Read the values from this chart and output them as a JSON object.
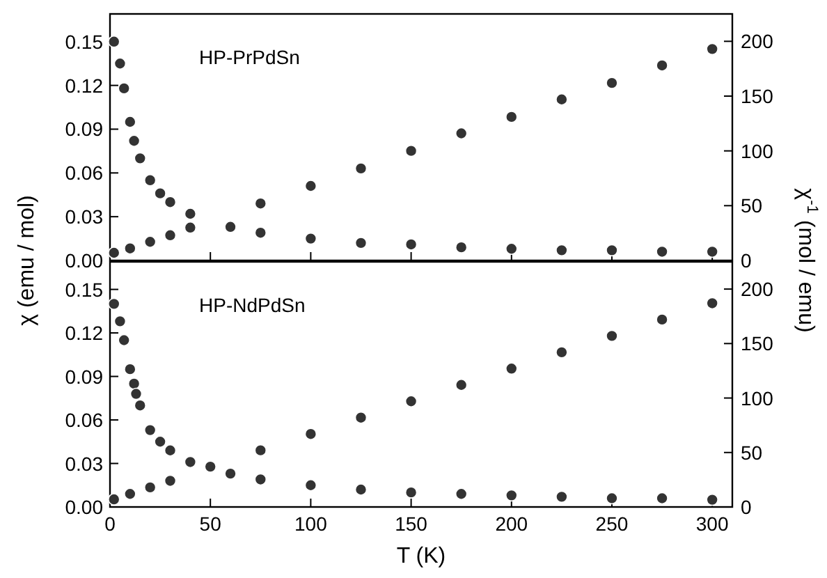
{
  "chart_data": [
    {
      "type": "scatter",
      "marker": "circle",
      "annotations": [
        "HP-PrPdSn"
      ],
      "ylabel": "χ (emu / mol)",
      "y2label": "χ$^{-1}$ (mol / emu)",
      "tick_labels": "y",
      "xlim": [
        0,
        310
      ],
      "xticks": [
        0,
        50,
        100,
        150,
        200,
        250,
        300
      ],
      "ylim": [
        0,
        0.169
      ],
      "yticks": [
        {
          "value": 0,
          "label": "0.00"
        },
        {
          "value": 0.03,
          "label": "0.03"
        },
        {
          "value": 0.06,
          "label": "0.06"
        },
        {
          "value": 0.09,
          "label": "0.09"
        },
        {
          "value": 0.12,
          "label": "0.12"
        },
        {
          "value": 0.15,
          "label": "0.15"
        }
      ],
      "y2lim": [
        0,
        225
      ],
      "y2ticks": [
        0,
        50,
        100,
        150,
        200
      ],
      "series": [
        {
          "color": "#333333",
          "x": [
            2,
            5,
            7,
            10,
            12,
            15,
            20,
            25,
            30,
            40,
            60,
            75,
            100,
            125,
            150,
            175,
            200,
            225,
            250,
            275,
            300
          ],
          "values": [
            0.15,
            0.135,
            0.118,
            0.095,
            0.082,
            0.07,
            0.055,
            0.046,
            0.04,
            0.032,
            0.023,
            0.019,
            0.015,
            0.012,
            0.011,
            0.009,
            0.008,
            0.007,
            0.007,
            0.006,
            0.006
          ]
        },
        {
          "color": "#333333",
          "axis": "y2",
          "x": [
            2,
            10,
            20,
            30,
            40,
            75,
            100,
            125,
            150,
            175,
            200,
            225,
            250,
            275,
            300
          ],
          "values": [
            7,
            11,
            17,
            23,
            30,
            52,
            68,
            84,
            100,
            116,
            131,
            147,
            162,
            178,
            193
          ]
        }
      ]
    },
    {
      "type": "scatter",
      "marker": "circle",
      "annotations": [
        "HP-NdPdSn"
      ],
      "xlabel": "T (K)",
      "xlim": [
        0,
        310
      ],
      "xticks": [
        0,
        50,
        100,
        150,
        200,
        250,
        300
      ],
      "ylim": [
        0,
        0.169
      ],
      "yticks": [
        {
          "value": 0,
          "label": "0.00"
        },
        {
          "value": 0.03,
          "label": "0.03"
        },
        {
          "value": 0.06,
          "label": "0.06"
        },
        {
          "value": 0.09,
          "label": "0.09"
        },
        {
          "value": 0.12,
          "label": "0.12"
        },
        {
          "value": 0.15,
          "label": "0.15"
        }
      ],
      "y2lim": [
        0,
        225
      ],
      "y2ticks": [
        0,
        50,
        100,
        150,
        200
      ],
      "series": [
        {
          "color": "#333333",
          "x": [
            2,
            5,
            7,
            10,
            12,
            13,
            15,
            20,
            25,
            30,
            40,
            60,
            75,
            100,
            125,
            150,
            175,
            200,
            225,
            250,
            275,
            300
          ],
          "values": [
            0.14,
            0.128,
            0.115,
            0.095,
            0.085,
            0.078,
            0.07,
            0.053,
            0.045,
            0.039,
            0.031,
            0.023,
            0.019,
            0.015,
            0.012,
            0.01,
            0.009,
            0.008,
            0.007,
            0.006,
            0.006,
            0.005
          ]
        },
        {
          "color": "#333333",
          "axis": "y2",
          "x": [
            2,
            10,
            20,
            30,
            50,
            75,
            100,
            125,
            150,
            175,
            200,
            225,
            250,
            275,
            300
          ],
          "values": [
            7,
            12,
            18,
            24,
            37,
            52,
            67,
            82,
            97,
            112,
            127,
            142,
            157,
            172,
            187
          ]
        }
      ]
    }
  ]
}
